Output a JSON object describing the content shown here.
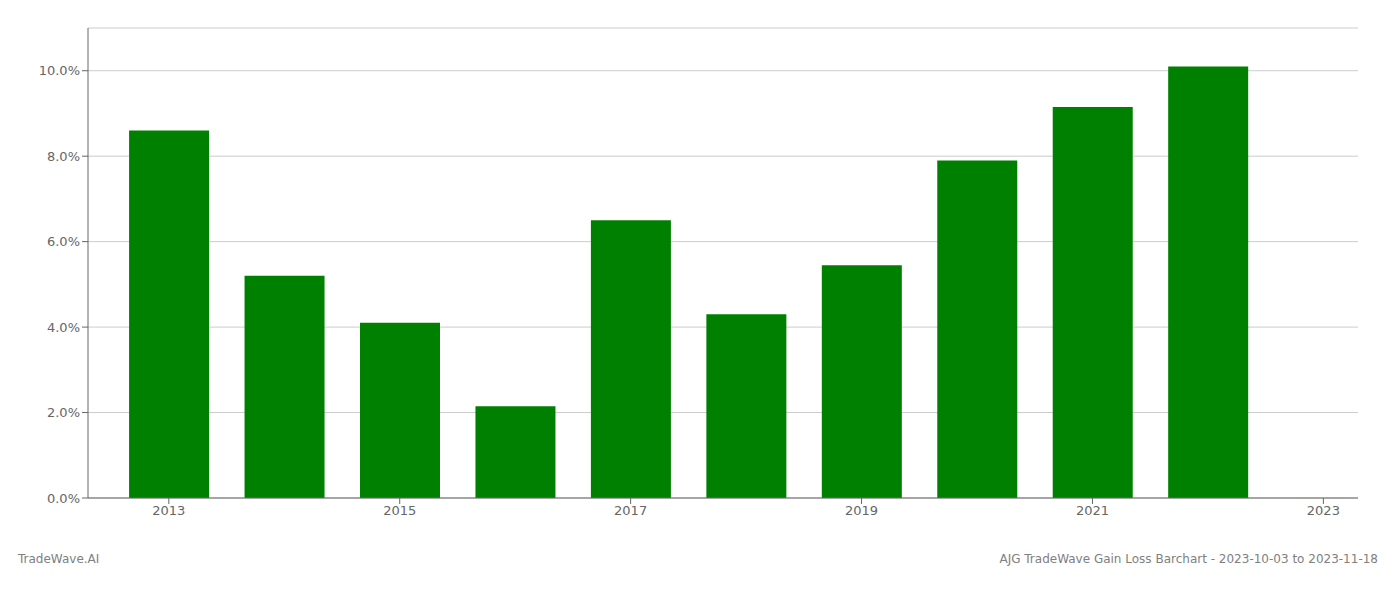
{
  "chart_data": {
    "type": "bar",
    "x": [
      2013,
      2014,
      2015,
      2016,
      2017,
      2018,
      2019,
      2020,
      2021,
      2022
    ],
    "values": [
      0.086,
      0.052,
      0.041,
      0.0215,
      0.065,
      0.043,
      0.0545,
      0.079,
      0.0915,
      0.101
    ],
    "color": "#008000",
    "xlim": [
      2012.3,
      2023.3
    ],
    "xticks": [
      2013,
      2015,
      2017,
      2019,
      2021,
      2023
    ],
    "ylim": [
      0,
      0.11
    ],
    "yticks": [
      {
        "value": 0.0,
        "label": "0.0%"
      },
      {
        "value": 0.02,
        "label": "2.0%"
      },
      {
        "value": 0.04,
        "label": "4.0%"
      },
      {
        "value": 0.06,
        "label": "6.0%"
      },
      {
        "value": 0.08,
        "label": "8.0%"
      },
      {
        "value": 0.1,
        "label": "10.0%"
      }
    ],
    "grid": true,
    "annotations": [
      "TradeWave.AI",
      "AJG TradeWave Gain Loss Barchart - 2023-10-03 to 2023-11-18"
    ]
  }
}
